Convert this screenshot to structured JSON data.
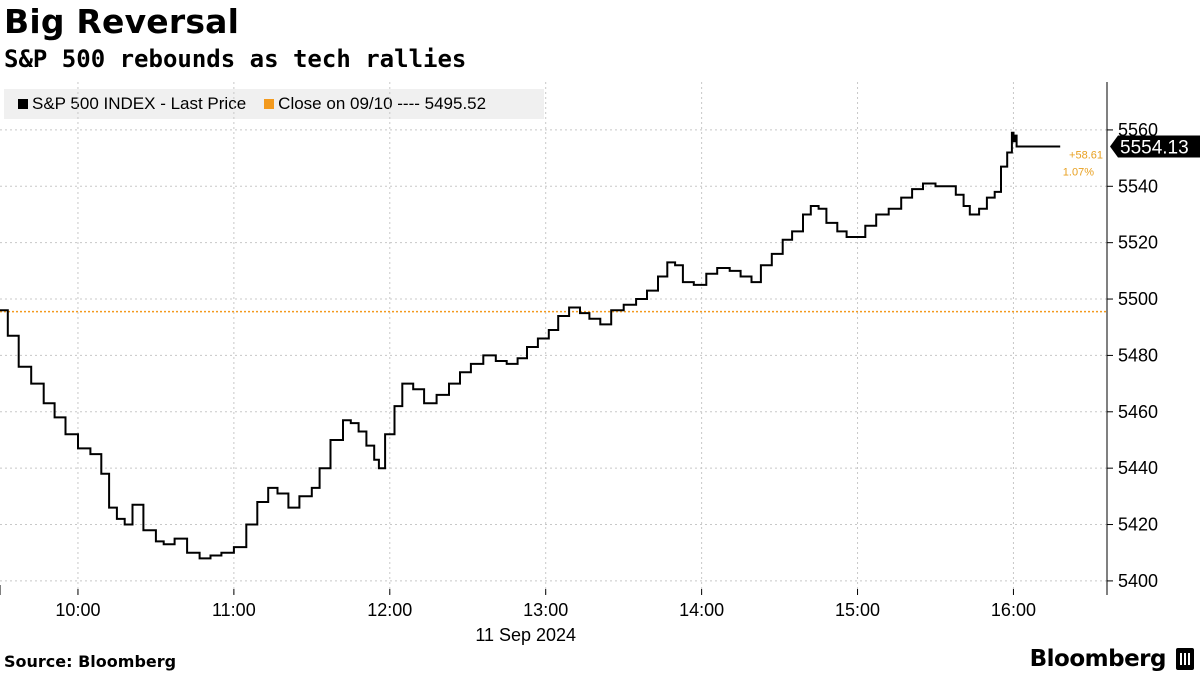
{
  "header": {
    "title": "Big Reversal",
    "subtitle": "S&P 500 rebounds as tech rallies"
  },
  "legend": {
    "series_label": "S&P 500 INDEX - Last Price",
    "close_label": "Close on 09/10 ---- 5495.52"
  },
  "last_value_label": "5554.13",
  "change_abs": "+58.61",
  "change_pct": "1.07%",
  "footer": {
    "source": "Source: Bloomberg",
    "brand": "Bloomberg"
  },
  "colors": {
    "line": "#000000",
    "reference": "#f39a1e",
    "change_text": "#e8a020",
    "legend_bg": "#f0f0f0",
    "grid": "#c8c8c8"
  },
  "chart_data": {
    "type": "line",
    "title": "Big Reversal",
    "subtitle": "S&P 500 rebounds as tech rallies",
    "xlabel": "11 Sep 2024",
    "ylabel": "",
    "x_unit": "time of day (hours)",
    "xlim": [
      9.5,
      16.6
    ],
    "ylim": [
      5395,
      5577
    ],
    "x_ticks": [
      10,
      11,
      12,
      13,
      14,
      15,
      16
    ],
    "x_tick_labels": [
      "10:00",
      "11:00",
      "12:00",
      "13:00",
      "14:00",
      "15:00",
      "16:00"
    ],
    "y_ticks": [
      5400,
      5420,
      5440,
      5460,
      5480,
      5500,
      5520,
      5540,
      5560
    ],
    "y_tick_labels": [
      "5400",
      "5420",
      "5440",
      "5460",
      "5480",
      "5500",
      "5520",
      "5540",
      "5560"
    ],
    "grid": true,
    "reference_line": {
      "name": "Close on 09/10",
      "value": 5495.52
    },
    "series": [
      {
        "name": "S&P 500 INDEX - Last Price",
        "x": [
          9.5,
          9.55,
          9.62,
          9.7,
          9.78,
          9.85,
          9.92,
          10.0,
          10.08,
          10.15,
          10.2,
          10.25,
          10.3,
          10.35,
          10.42,
          10.5,
          10.55,
          10.62,
          10.7,
          10.78,
          10.85,
          10.92,
          11.0,
          11.08,
          11.15,
          11.22,
          11.28,
          11.35,
          11.42,
          11.5,
          11.55,
          11.62,
          11.7,
          11.75,
          11.8,
          11.85,
          11.9,
          11.93,
          11.97,
          12.03,
          12.08,
          12.15,
          12.22,
          12.3,
          12.38,
          12.45,
          12.52,
          12.6,
          12.68,
          12.75,
          12.82,
          12.88,
          12.95,
          13.02,
          13.08,
          13.15,
          13.22,
          13.28,
          13.35,
          13.42,
          13.5,
          13.58,
          13.65,
          13.72,
          13.78,
          13.83,
          13.88,
          13.95,
          14.03,
          14.1,
          14.18,
          14.25,
          14.32,
          14.38,
          14.45,
          14.52,
          14.58,
          14.65,
          14.7,
          14.75,
          14.8,
          14.87,
          14.93,
          15.0,
          15.05,
          15.12,
          15.2,
          15.28,
          15.35,
          15.42,
          15.5,
          15.57,
          15.63,
          15.68,
          15.72,
          15.78,
          15.83,
          15.88,
          15.92,
          15.96,
          15.99,
          16.0,
          16.01,
          16.02,
          16.3
        ],
        "values": [
          5496,
          5487,
          5476,
          5470,
          5463,
          5458,
          5452,
          5447,
          5445,
          5438,
          5426,
          5422,
          5420,
          5427,
          5418,
          5414,
          5413,
          5415,
          5410,
          5408,
          5409,
          5410,
          5412,
          5420,
          5428,
          5433,
          5431,
          5426,
          5430,
          5433,
          5440,
          5450,
          5457,
          5456,
          5453,
          5448,
          5443,
          5440,
          5452,
          5462,
          5470,
          5468,
          5463,
          5466,
          5470,
          5474,
          5477,
          5480,
          5478,
          5477,
          5479,
          5483,
          5486,
          5489,
          5494,
          5497,
          5495,
          5493,
          5491,
          5496,
          5498,
          5500,
          5503,
          5508,
          5513,
          5512,
          5506,
          5505,
          5509,
          5511,
          5510,
          5508,
          5506,
          5512,
          5516,
          5521,
          5524,
          5530,
          5533,
          5532,
          5527,
          5524,
          5522,
          5522,
          5526,
          5530,
          5532,
          5536,
          5539,
          5541,
          5540,
          5540,
          5537,
          5533,
          5530,
          5532,
          5536,
          5538,
          5547,
          5552,
          5559,
          5556,
          5558,
          5554.13,
          5554.13
        ]
      }
    ],
    "annotations": [
      "+58.61",
      "1.07%",
      "5554.13"
    ]
  }
}
